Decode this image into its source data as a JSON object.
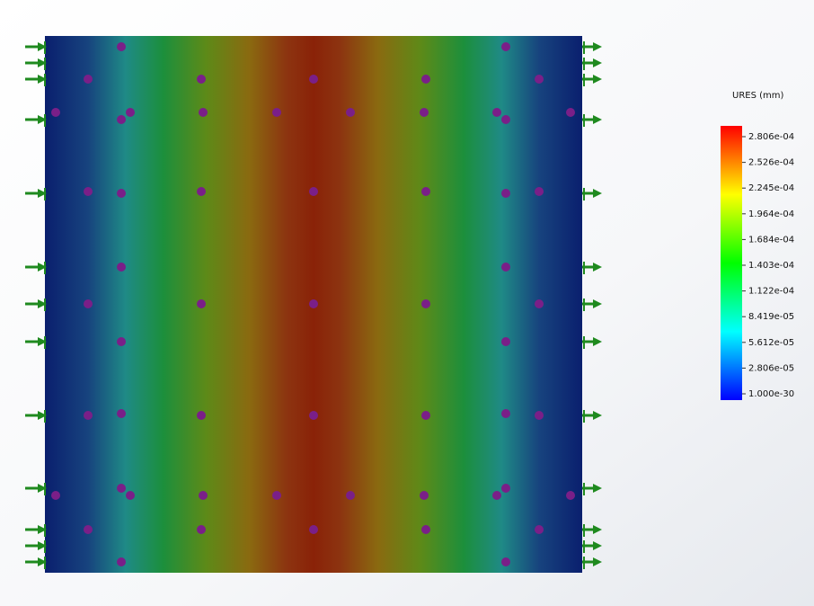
{
  "legend": {
    "title": "URES (mm)",
    "labels": [
      "2.806e-04",
      "2.526e-04",
      "2.245e-04",
      "1.964e-04",
      "1.684e-04",
      "1.403e-04",
      "1.122e-04",
      "8.419e-05",
      "5.612e-05",
      "2.806e-05",
      "1.000e-30"
    ]
  }
}
